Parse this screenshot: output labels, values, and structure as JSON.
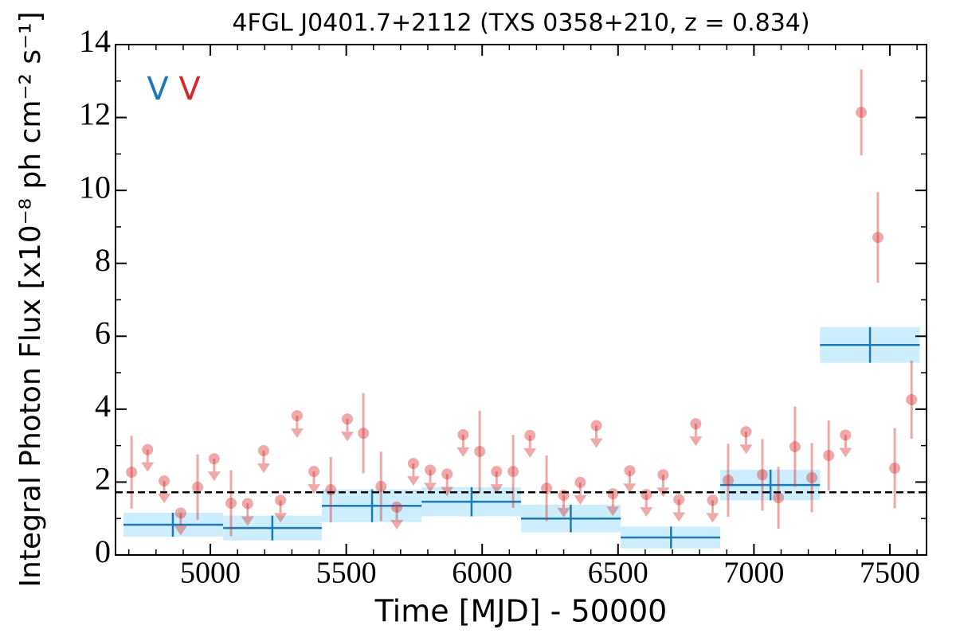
{
  "chart_data": {
    "type": "lightcurve",
    "title": "4FGL J0401.7+2112 (TXS 0358+210, z = 0.834)",
    "xlabel": "Time [MJD] - 50000",
    "ylabel": "Integral Photon Flux [x10⁻⁸ ph cm⁻² s⁻¹]",
    "xlim": [
      4651,
      7635
    ],
    "ylim": [
      0,
      14
    ],
    "xticks": [
      5000,
      5500,
      6000,
      6500,
      7000,
      7500
    ],
    "yticks": [
      0,
      2,
      4,
      6,
      8,
      10,
      12,
      14
    ],
    "xminorticks": [
      4700,
      4800,
      4900,
      5100,
      5200,
      5300,
      5400,
      5600,
      5700,
      5800,
      5900,
      6100,
      6200,
      6300,
      6400,
      6600,
      6700,
      6800,
      6900,
      7100,
      7200,
      7300,
      7400,
      7600
    ],
    "yminorticks": [
      1,
      3,
      5,
      7,
      9,
      11,
      13
    ],
    "reference_line": 1.72,
    "series": [
      {
        "name": "V",
        "color": "#1f77b4",
        "band_color": "#cdeefc",
        "kind": "bins",
        "x": [
          4862,
          5228,
          5595,
          5961,
          6326,
          6695,
          7061,
          7427
        ],
        "xmin": [
          4680,
          5047,
          5410,
          5777,
          6143,
          6510,
          6876,
          7243
        ],
        "xmax": [
          5047,
          5410,
          5777,
          6143,
          6510,
          6876,
          7243,
          7610
        ],
        "values": [
          0.83,
          0.74,
          1.35,
          1.46,
          1.0,
          0.48,
          1.92,
          5.76
        ],
        "errors": [
          0.33,
          0.34,
          0.45,
          0.4,
          0.38,
          0.3,
          0.42,
          0.49
        ]
      },
      {
        "name": "V",
        "color": "#d62728",
        "kind": "points",
        "x": [
          4710,
          4769,
          4830,
          4891,
          4953,
          5014,
          5076,
          5137,
          5196,
          5258,
          5319,
          5381,
          5443,
          5504,
          5563,
          5628,
          5686,
          5747,
          5809,
          5871,
          5930,
          5991,
          6053,
          6114,
          6176,
          6237,
          6300,
          6361,
          6420,
          6481,
          6543,
          6604,
          6666,
          6724,
          6786,
          6848,
          6905,
          6971,
          7031,
          7090,
          7151,
          7213,
          7275,
          7337,
          7395,
          7456,
          7518,
          7580
        ],
        "values": [
          2.27,
          2.89,
          2.03,
          1.15,
          1.86,
          2.64,
          1.42,
          1.41,
          2.86,
          1.5,
          3.82,
          2.29,
          1.79,
          3.73,
          3.34,
          1.88,
          1.31,
          2.51,
          2.33,
          2.22,
          3.3,
          2.84,
          2.29,
          2.29,
          3.28,
          1.83,
          1.64,
          1.99,
          3.55,
          1.68,
          2.31,
          1.66,
          2.2,
          1.52,
          3.6,
          1.5,
          2.05,
          3.38,
          2.2,
          1.57,
          2.97,
          2.12,
          2.73,
          3.29,
          12.14,
          8.71,
          2.38,
          4.26
        ],
        "errors": [
          1.0,
          null,
          null,
          null,
          0.9,
          null,
          0.9,
          null,
          null,
          null,
          null,
          null,
          0.9,
          null,
          1.1,
          0.95,
          null,
          null,
          null,
          null,
          null,
          1.12,
          null,
          1.0,
          null,
          0.9,
          null,
          null,
          null,
          null,
          null,
          null,
          null,
          null,
          null,
          null,
          1.0,
          null,
          0.98,
          0.85,
          1.1,
          0.95,
          0.96,
          null,
          1.18,
          1.24,
          1.1,
          1.07
        ],
        "upper_limit": [
          false,
          true,
          true,
          true,
          false,
          true,
          false,
          true,
          true,
          true,
          true,
          true,
          false,
          true,
          false,
          false,
          true,
          true,
          true,
          true,
          true,
          false,
          true,
          false,
          true,
          false,
          true,
          true,
          true,
          true,
          true,
          true,
          true,
          true,
          true,
          true,
          false,
          true,
          false,
          false,
          false,
          false,
          false,
          true,
          false,
          false,
          false,
          false
        ]
      }
    ]
  }
}
